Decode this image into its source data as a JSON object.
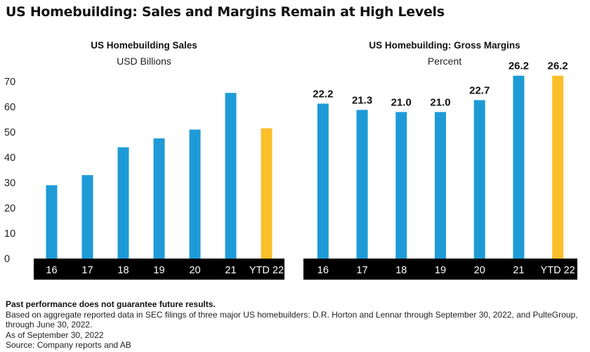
{
  "title": "US Homebuilding: Sales and Margins Remain at High Levels",
  "colors": {
    "bar": "#1e9bd7",
    "highlight": "#fbbf2a",
    "axis_band": "#000000",
    "axis_text": "#ffffff"
  },
  "chart_data": [
    {
      "type": "bar",
      "title": "US Homebuilding Sales",
      "subtitle": "USD Billions",
      "categories": [
        "16",
        "17",
        "18",
        "19",
        "20",
        "21",
        "YTD 22"
      ],
      "values": [
        29,
        33,
        44,
        47.5,
        51,
        65.5,
        51.5
      ],
      "ylim": [
        0,
        70
      ],
      "yticks": [
        0,
        10,
        20,
        30,
        40,
        50,
        60,
        70
      ],
      "grid": false,
      "data_labels": false
    },
    {
      "type": "bar",
      "title": "US Homebuilding: Gross Margins",
      "subtitle": "Percent",
      "categories": [
        "16",
        "17",
        "18",
        "19",
        "20",
        "21",
        "YTD 22"
      ],
      "values": [
        22.2,
        21.3,
        21.0,
        21.0,
        22.7,
        26.2,
        26.2
      ],
      "value_labels": [
        "22.2",
        "21.3",
        "21.0",
        "21.0",
        "22.7",
        "26.2",
        "26.2"
      ],
      "ylim": [
        0,
        30
      ],
      "grid": false,
      "data_labels": true
    }
  ],
  "footnotes": {
    "disclaimer": "Past performance does not guarantee future results.",
    "note": "Based on aggregate reported data in SEC filings of three major US homebuilders: D.R. Horton and Lennar through September 30, 2022, and PulteGroup, through June 30, 2022.",
    "as_of": "As of September 30, 2022",
    "source": "Source: Company reports and AB"
  }
}
